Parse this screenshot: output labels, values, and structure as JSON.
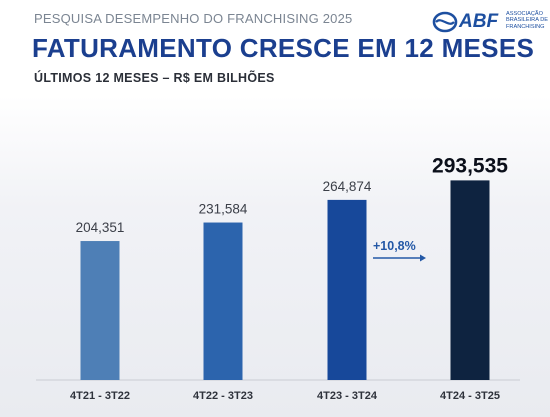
{
  "header": {
    "top_label": "PESQUISA DESEMPENHO DO FRANCHISING 2025",
    "title": "FATURAMENTO CRESCE EM 12 MESES",
    "subtitle": "ÚLTIMOS 12 MESES – R$ EM BILHÕES"
  },
  "logo": {
    "name": "ABF",
    "text": "ASSOCIAÇÃO BRASILEIRA DE FRANCHISING",
    "icon": "abf-swirl-icon"
  },
  "chart_data": {
    "type": "bar",
    "title": "FATURAMENTO CRESCE EM 12 MESES",
    "subtitle": "ÚLTIMOS 12 MESES – R$ EM BILHÕES",
    "categories": [
      "4T21 - 3T22",
      "4T22 - 3T23",
      "4T23 - 3T24",
      "4T24 - 3T25"
    ],
    "values": [
      204.351,
      231.584,
      264.874,
      293.535
    ],
    "value_labels": [
      "204,351",
      "231,584",
      "264,874",
      "293,535"
    ],
    "bar_colors": [
      "#4e7fb6",
      "#2c64ad",
      "#17489a",
      "#0e2340"
    ],
    "annotation": {
      "text": "+10,8%",
      "from_category": "4T23 - 3T24",
      "to_category": "4T24 - 3T25",
      "color": "#2458a6"
    },
    "ylim": [
      0,
      300
    ],
    "grid": false,
    "legend": "none"
  }
}
